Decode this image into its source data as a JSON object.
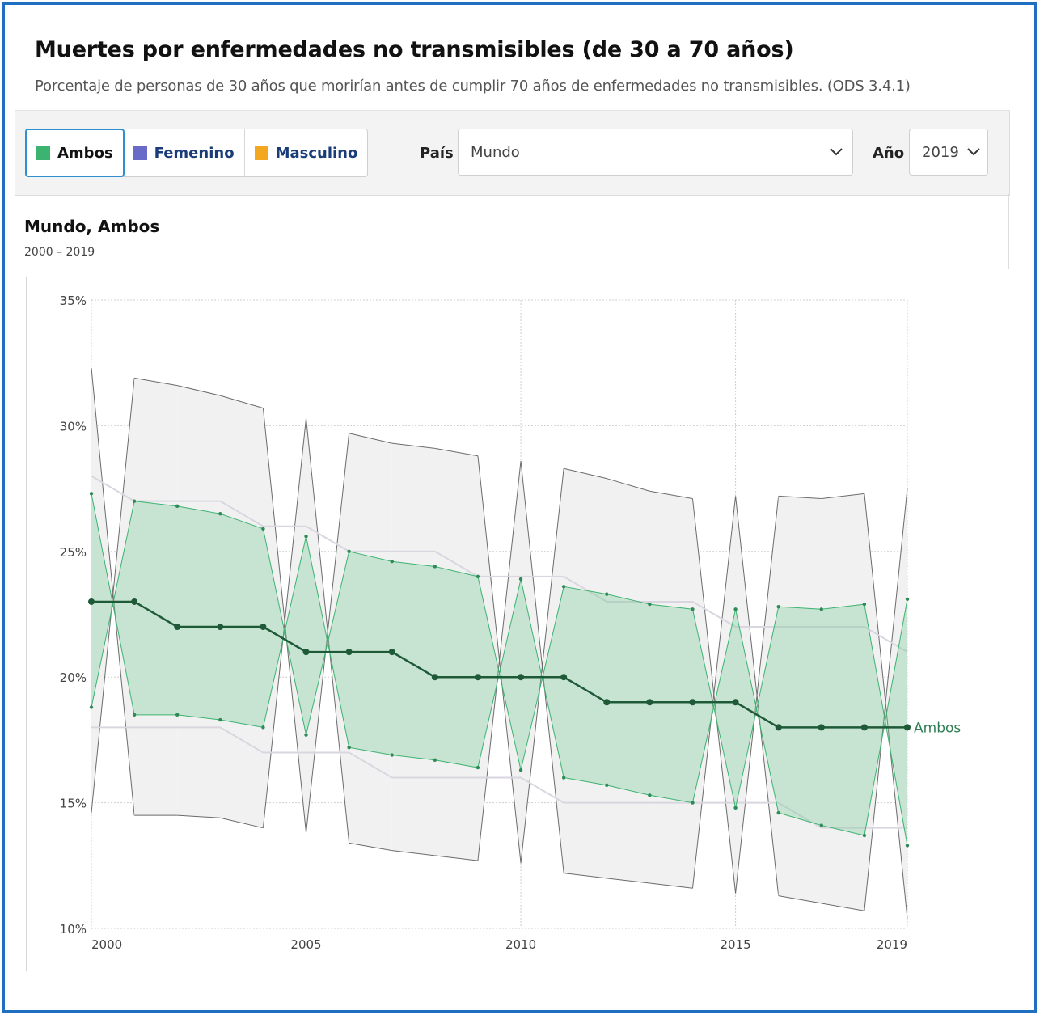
{
  "header": {
    "title": "Muertes por enfermedades no transmisibles (de 30 a 70 años)",
    "subtitle": "Porcentaje de personas de 30 años que morirían antes de cumplir 70 años de enfermedades no transmisibles. (ODS 3.4.1)"
  },
  "controls": {
    "sex_options": [
      {
        "label": "Ambos",
        "color": "#3cb371",
        "active": true
      },
      {
        "label": "Femenino",
        "color": "#6a6ac8",
        "active": false
      },
      {
        "label": "Masculino",
        "color": "#f3a81f",
        "active": false
      }
    ],
    "country_label": "País",
    "country_value": "Mundo",
    "year_label": "Año",
    "year_value": "2019",
    "chevron_icon": "chevron-down-icon"
  },
  "chart_header": {
    "title": "Mundo, Ambos",
    "range": "2000 – 2019"
  },
  "chart_data": {
    "type": "line",
    "x": [
      2000,
      2001,
      2002,
      2003,
      2004,
      2005,
      2006,
      2007,
      2008,
      2009,
      2010,
      2011,
      2012,
      2013,
      2014,
      2015,
      2016,
      2017,
      2018,
      2019
    ],
    "x_ticks": [
      {
        "value": 2000,
        "label": "2000"
      },
      {
        "value": 2005,
        "label": "2005"
      },
      {
        "value": 2010,
        "label": "2010"
      },
      {
        "value": 2015,
        "label": "2015"
      },
      {
        "value": 2019,
        "label": "2019"
      }
    ],
    "y_ticks": [
      {
        "value": 10,
        "label": "10%"
      },
      {
        "value": 15,
        "label": "15%"
      },
      {
        "value": 20,
        "label": "20%"
      },
      {
        "value": 25,
        "label": "25%"
      },
      {
        "value": 30,
        "label": "30%"
      },
      {
        "value": 35,
        "label": "35%"
      }
    ],
    "ylim": [
      10,
      35
    ],
    "grid": true,
    "series": [
      {
        "name": "Ambos",
        "color": "#1e5a38",
        "values": [
          23,
          23,
          22,
          22,
          22,
          21,
          21,
          21,
          20,
          20,
          20,
          20,
          19,
          19,
          19,
          19,
          18,
          18,
          18,
          18
        ]
      }
    ],
    "band_green": {
      "color": "#3cb371",
      "fill": "#cfe9d9",
      "upper": [
        27.3,
        27.0,
        26.8,
        26.5,
        25.9,
        25.6,
        25.0,
        24.6,
        24.4,
        24.0,
        23.9,
        23.6,
        23.3,
        22.9,
        22.7,
        22.7,
        22.8,
        22.7,
        22.9,
        23.1
      ],
      "lower": [
        18.8,
        18.5,
        18.5,
        18.3,
        18.0,
        17.7,
        17.2,
        16.9,
        16.7,
        16.4,
        16.3,
        16.0,
        15.7,
        15.3,
        15.0,
        14.8,
        14.6,
        14.1,
        13.7,
        13.3
      ]
    },
    "band_grey": {
      "color": "#555555",
      "fill": "#f1f1f1",
      "upper": [
        32.3,
        31.9,
        31.6,
        31.2,
        30.7,
        30.3,
        29.7,
        29.3,
        29.1,
        28.8,
        28.6,
        28.3,
        27.9,
        27.4,
        27.1,
        27.2,
        27.2,
        27.1,
        27.3,
        27.5
      ],
      "lower": [
        14.6,
        14.5,
        14.5,
        14.4,
        14.0,
        13.8,
        13.4,
        13.1,
        12.9,
        12.7,
        12.6,
        12.2,
        12.0,
        11.8,
        11.6,
        11.4,
        11.3,
        11.0,
        10.7,
        10.4
      ]
    },
    "reference_lines": {
      "color": "#d9d6e0",
      "upper": [
        28,
        27,
        27,
        27,
        26,
        26,
        25,
        25,
        25,
        24,
        24,
        24,
        23,
        23,
        23,
        22,
        22,
        22,
        22,
        21
      ],
      "lower": [
        18,
        18,
        18,
        18,
        17,
        17,
        17,
        16,
        16,
        16,
        16,
        15,
        15,
        15,
        15,
        15,
        15,
        14,
        14,
        14
      ]
    },
    "end_label": "Ambos"
  }
}
